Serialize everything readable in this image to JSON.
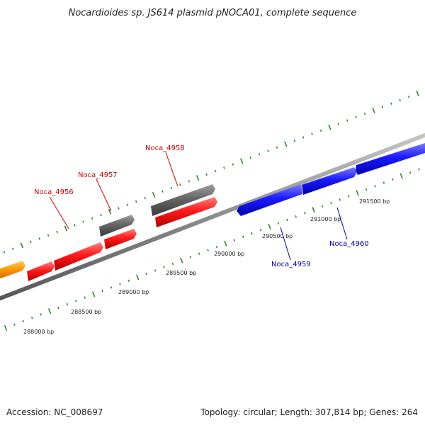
{
  "title": "Nocardioides sp. JS614 plasmid pNOCA01, complete sequence",
  "footer": {
    "accession": "Accession: NC_008697",
    "summary": "Topology: circular; Length: 307,814 bp; Genes: 264"
  },
  "colors": {
    "backbone": "#8c8c8c",
    "tick": "#2a8a2a",
    "red_gene": "#ff1a1a",
    "gray_gene": "#666666",
    "blue_gene": "#1a1aff",
    "orange_gene": "#ff9900",
    "red_label": "#cc0000",
    "blue_label": "#0000aa"
  },
  "gene_labels": [
    {
      "text": "Noca_4956",
      "color": "red"
    },
    {
      "text": "Noca_4957",
      "color": "red"
    },
    {
      "text": "Noca_4958",
      "color": "red"
    },
    {
      "text": "Noca_4959",
      "color": "blue"
    },
    {
      "text": "Noca_4960",
      "color": "blue"
    }
  ],
  "scale_labels": [
    "288000 bp",
    "288500 bp",
    "289000 bp",
    "289500 bp",
    "290000 bp",
    "290500 bp",
    "291000 bp",
    "291500 bp"
  ]
}
